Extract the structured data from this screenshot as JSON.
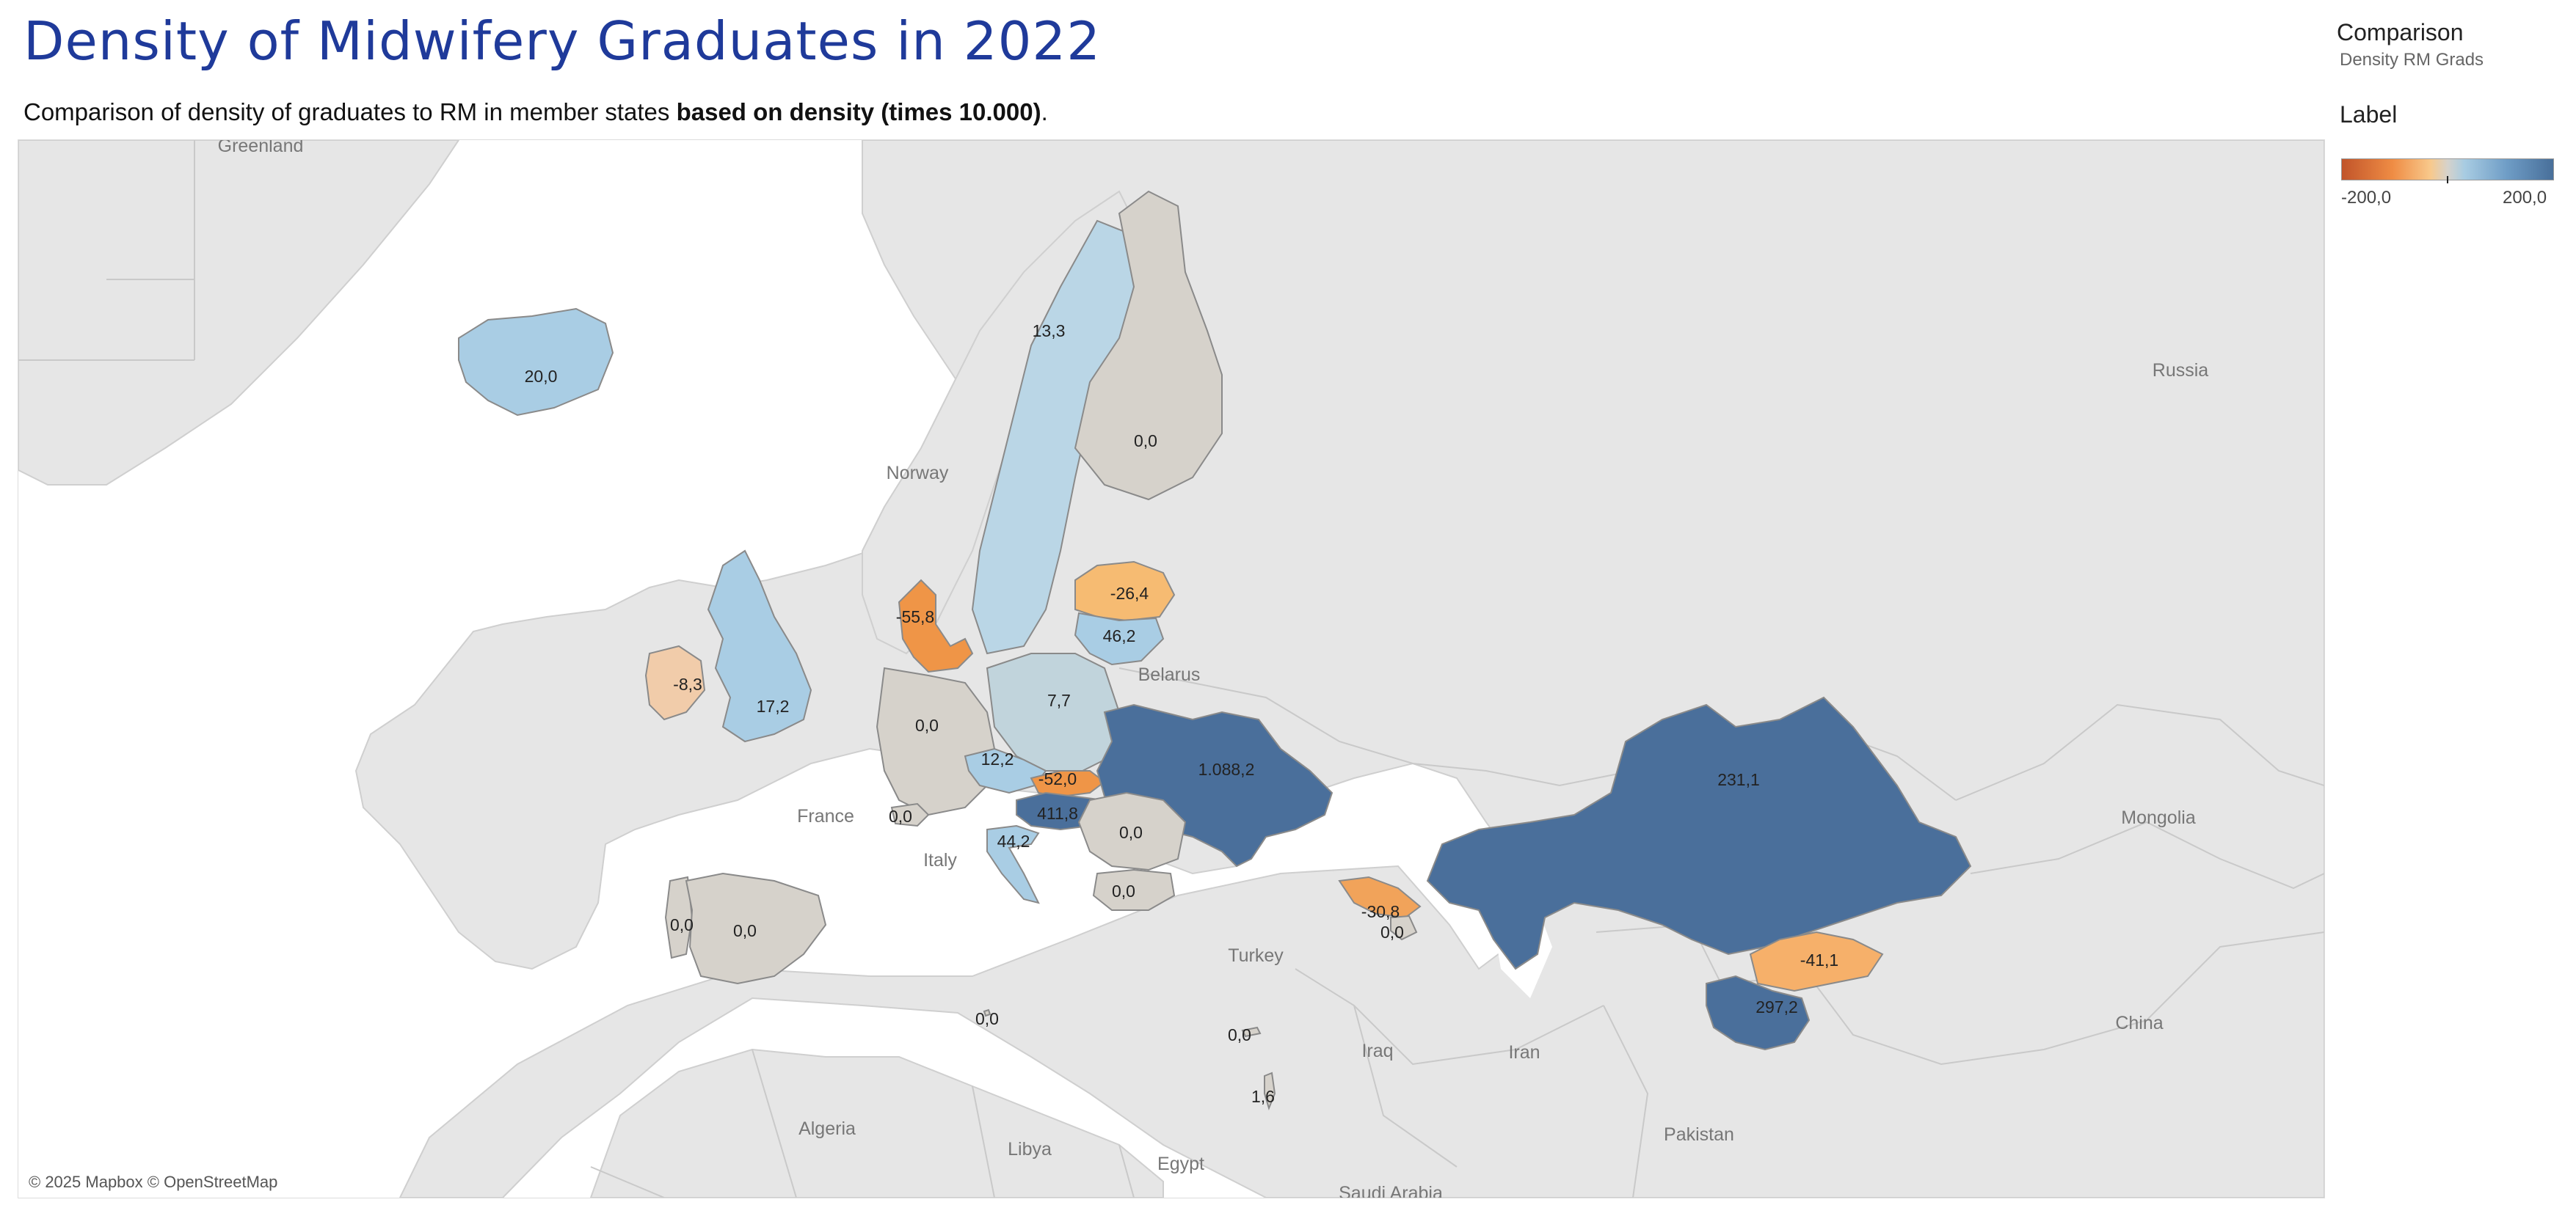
{
  "title": "Density of Midwifery Graduates in 2022",
  "subtitle": {
    "plain": "Comparison of density of graduates to RM in member states ",
    "bold": "based on density (times 10.000)",
    "end": "."
  },
  "legend": {
    "heading": "Comparison",
    "subheading": "Density RM Grads",
    "label": "Label",
    "min_label": "-200,0",
    "max_label": "200,0",
    "min": -200,
    "max": 200,
    "colors": {
      "negative": "#c1542a",
      "neutral": "#d6d2cb",
      "positive": "#486f9a"
    }
  },
  "attribution": "© 2025 Mapbox © OpenStreetMap",
  "map_data": {
    "regions": [
      {
        "name": "Iceland",
        "label": "20,0",
        "value": 20.0
      },
      {
        "name": "Sweden",
        "label": "13,3",
        "value": 13.3
      },
      {
        "name": "Finland",
        "label": "0,0",
        "value": 0.0
      },
      {
        "name": "Denmark",
        "label": "-55,8",
        "value": -55.8
      },
      {
        "name": "Latvia",
        "label": "-26,4",
        "value": -26.4
      },
      {
        "name": "Lithuania",
        "label": "46,2",
        "value": 46.2
      },
      {
        "name": "Ireland",
        "label": "-8,3",
        "value": -8.3
      },
      {
        "name": "United Kingdom",
        "label": "17,2",
        "value": 17.2
      },
      {
        "name": "Germany",
        "label": "0,0",
        "value": 0.0
      },
      {
        "name": "Poland",
        "label": "7,7",
        "value": 7.7
      },
      {
        "name": "Czechia",
        "label": "12,2",
        "value": 12.2
      },
      {
        "name": "Slovakia",
        "label": "-52,0",
        "value": -52.0
      },
      {
        "name": "Ukraine",
        "label": "1.088,2",
        "value": 1088.2
      },
      {
        "name": "Hungary",
        "label": "411,8",
        "value": 411.8
      },
      {
        "name": "Switzerland",
        "label": "0,0",
        "value": 0.0
      },
      {
        "name": "Croatia",
        "label": "44,2",
        "value": 44.2
      },
      {
        "name": "Romania",
        "label": "0,0",
        "value": 0.0
      },
      {
        "name": "Bulgaria",
        "label": "0,0",
        "value": 0.0
      },
      {
        "name": "Portugal",
        "label": "0,0",
        "value": 0.0
      },
      {
        "name": "Spain",
        "label": "0,0",
        "value": 0.0
      },
      {
        "name": "Malta",
        "label": "0,0",
        "value": 0.0
      },
      {
        "name": "Cyprus",
        "label": "0,0",
        "value": 0.0
      },
      {
        "name": "Israel",
        "label": "1,6",
        "value": 1.6
      },
      {
        "name": "Georgia",
        "label": "-30,8",
        "value": -30.8
      },
      {
        "name": "Armenia",
        "label": "0,0",
        "value": 0.0
      },
      {
        "name": "Kazakhstan",
        "label": "231,1",
        "value": 231.1
      },
      {
        "name": "Kyrgyzstan",
        "label": "-41,1",
        "value": -41.1
      },
      {
        "name": "Tajikistan",
        "label": "297,2",
        "value": 297.2
      }
    ],
    "places": [
      "Greenland",
      "Norway",
      "Belarus",
      "France",
      "Italy",
      "Turkey",
      "Iraq",
      "Iran",
      "Algeria",
      "Libya",
      "Egypt",
      "Saudi Arabia",
      "Pakistan",
      "China",
      "Mongolia",
      "Russia"
    ]
  }
}
